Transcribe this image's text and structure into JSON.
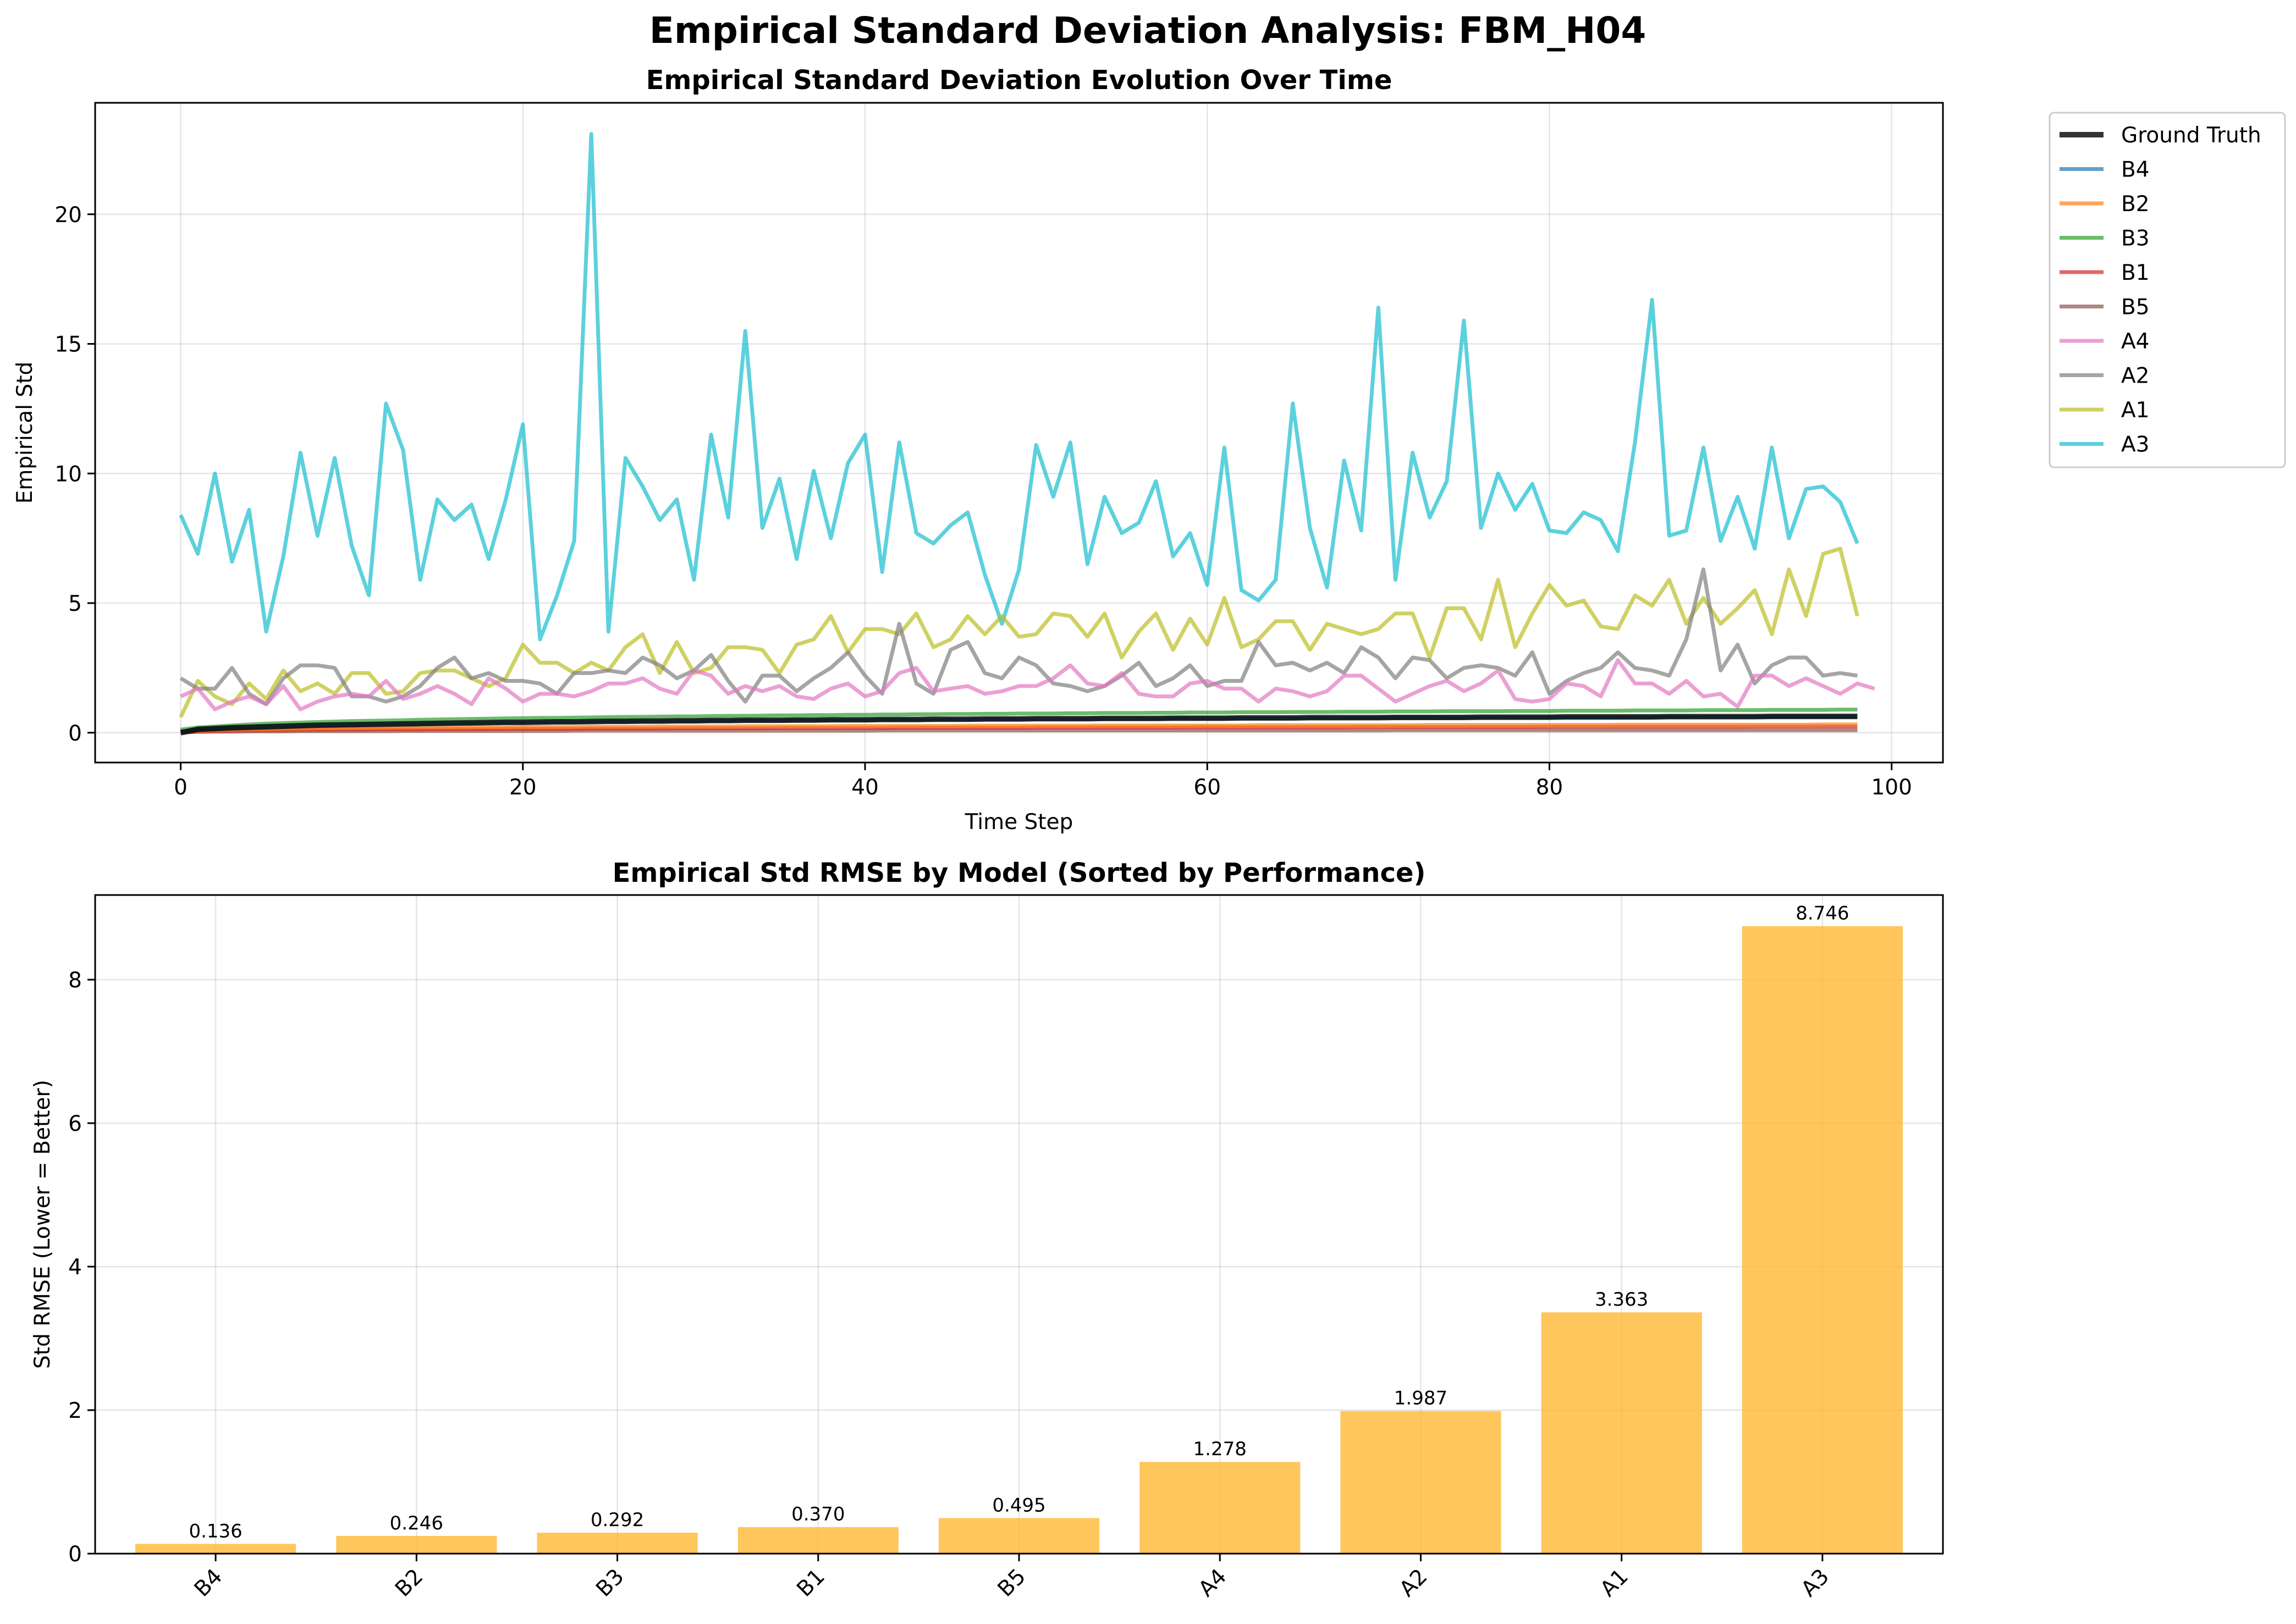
{
  "suptitle": "Empirical Standard Deviation Analysis: FBM_H04",
  "chart_data": [
    {
      "type": "line",
      "title": "Empirical Standard Deviation Evolution Over Time",
      "xlabel": "Time Step",
      "ylabel": "Empirical Std",
      "xlim": [
        -5,
        103
      ],
      "ylim": [
        -1.15,
        24.3
      ],
      "xticks": [
        0,
        20,
        40,
        60,
        80,
        100
      ],
      "yticks": [
        0,
        5,
        10,
        15,
        20
      ],
      "grid": true,
      "legend_position": "outside-top-right",
      "x_start": 0,
      "series": [
        {
          "name": "Ground Truth",
          "color": "#000000",
          "values": [
            0.0,
            0.13,
            0.16,
            0.19,
            0.21,
            0.23,
            0.25,
            0.27,
            0.29,
            0.3,
            0.31,
            0.32,
            0.33,
            0.34,
            0.35,
            0.36,
            0.37,
            0.38,
            0.39,
            0.4,
            0.4,
            0.41,
            0.42,
            0.42,
            0.43,
            0.44,
            0.44,
            0.45,
            0.45,
            0.46,
            0.46,
            0.47,
            0.47,
            0.48,
            0.48,
            0.48,
            0.49,
            0.49,
            0.5,
            0.5,
            0.5,
            0.51,
            0.51,
            0.51,
            0.52,
            0.52,
            0.52,
            0.53,
            0.53,
            0.53,
            0.54,
            0.54,
            0.54,
            0.54,
            0.55,
            0.55,
            0.55,
            0.55,
            0.56,
            0.56,
            0.56,
            0.56,
            0.57,
            0.57,
            0.57,
            0.57,
            0.58,
            0.58,
            0.58,
            0.58,
            0.58,
            0.59,
            0.59,
            0.59,
            0.59,
            0.59,
            0.6,
            0.6,
            0.6,
            0.6,
            0.6,
            0.61,
            0.61,
            0.61,
            0.61,
            0.61,
            0.61,
            0.62,
            0.62,
            0.62,
            0.62,
            0.62,
            0.62,
            0.63,
            0.63,
            0.63,
            0.63,
            0.63,
            0.63
          ]
        },
        {
          "name": "B4",
          "color": "#1f77b4",
          "values": [
            0.05,
            0.12,
            0.15,
            0.18,
            0.2,
            0.22,
            0.24,
            0.26,
            0.28,
            0.29,
            0.3,
            0.31,
            0.32,
            0.33,
            0.34,
            0.35,
            0.36,
            0.37,
            0.38,
            0.39,
            0.39,
            0.4,
            0.41,
            0.41,
            0.42,
            0.43,
            0.43,
            0.44,
            0.44,
            0.45,
            0.45,
            0.46,
            0.46,
            0.47,
            0.47,
            0.47,
            0.48,
            0.48,
            0.49,
            0.49,
            0.49,
            0.5,
            0.5,
            0.5,
            0.51,
            0.51,
            0.51,
            0.52,
            0.52,
            0.52,
            0.53,
            0.53,
            0.53,
            0.53,
            0.54,
            0.54,
            0.54,
            0.54,
            0.55,
            0.55,
            0.55,
            0.55,
            0.56,
            0.56,
            0.56,
            0.56,
            0.57,
            0.57,
            0.57,
            0.57,
            0.57,
            0.58,
            0.58,
            0.58,
            0.58,
            0.58,
            0.59,
            0.59,
            0.59,
            0.59,
            0.59,
            0.6,
            0.6,
            0.6,
            0.6,
            0.6,
            0.6,
            0.61,
            0.61,
            0.61,
            0.61,
            0.61,
            0.61,
            0.62,
            0.62,
            0.62,
            0.62,
            0.62,
            0.62
          ]
        },
        {
          "name": "B2",
          "color": "#ff7f0e",
          "values": [
            0.03,
            0.08,
            0.1,
            0.12,
            0.13,
            0.14,
            0.15,
            0.16,
            0.17,
            0.17,
            0.18,
            0.18,
            0.19,
            0.19,
            0.2,
            0.2,
            0.2,
            0.21,
            0.21,
            0.21,
            0.22,
            0.22,
            0.22,
            0.22,
            0.23,
            0.23,
            0.23,
            0.23,
            0.24,
            0.24,
            0.24,
            0.24,
            0.24,
            0.25,
            0.25,
            0.25,
            0.25,
            0.25,
            0.25,
            0.26,
            0.26,
            0.26,
            0.26,
            0.26,
            0.26,
            0.26,
            0.27,
            0.27,
            0.27,
            0.27,
            0.27,
            0.27,
            0.27,
            0.27,
            0.28,
            0.28,
            0.28,
            0.28,
            0.28,
            0.28,
            0.28,
            0.28,
            0.28,
            0.29,
            0.29,
            0.29,
            0.29,
            0.29,
            0.29,
            0.29,
            0.29,
            0.29,
            0.29,
            0.3,
            0.3,
            0.3,
            0.3,
            0.3,
            0.3,
            0.3,
            0.3,
            0.3,
            0.3,
            0.3,
            0.31,
            0.31,
            0.31,
            0.31,
            0.31,
            0.31,
            0.31,
            0.31,
            0.31,
            0.31,
            0.31,
            0.31,
            0.32,
            0.32,
            0.32
          ]
        },
        {
          "name": "B3",
          "color": "#2ca02c",
          "values": [
            0.12,
            0.2,
            0.24,
            0.28,
            0.32,
            0.35,
            0.37,
            0.39,
            0.41,
            0.43,
            0.45,
            0.46,
            0.47,
            0.48,
            0.5,
            0.51,
            0.52,
            0.53,
            0.54,
            0.55,
            0.56,
            0.57,
            0.57,
            0.58,
            0.59,
            0.6,
            0.61,
            0.61,
            0.62,
            0.63,
            0.63,
            0.64,
            0.65,
            0.65,
            0.66,
            0.67,
            0.67,
            0.68,
            0.68,
            0.69,
            0.69,
            0.7,
            0.7,
            0.71,
            0.71,
            0.72,
            0.72,
            0.73,
            0.73,
            0.74,
            0.74,
            0.74,
            0.75,
            0.75,
            0.76,
            0.76,
            0.76,
            0.77,
            0.77,
            0.78,
            0.78,
            0.78,
            0.79,
            0.79,
            0.79,
            0.8,
            0.8,
            0.8,
            0.81,
            0.81,
            0.81,
            0.82,
            0.82,
            0.82,
            0.83,
            0.83,
            0.83,
            0.83,
            0.84,
            0.84,
            0.84,
            0.85,
            0.85,
            0.85,
            0.85,
            0.86,
            0.86,
            0.86,
            0.86,
            0.87,
            0.87,
            0.87,
            0.87,
            0.88,
            0.88,
            0.88,
            0.88,
            0.89,
            0.89
          ]
        },
        {
          "name": "B1",
          "color": "#d62728",
          "values": [
            0.02,
            0.06,
            0.07,
            0.08,
            0.09,
            0.1,
            0.1,
            0.11,
            0.11,
            0.12,
            0.12,
            0.12,
            0.13,
            0.13,
            0.13,
            0.14,
            0.14,
            0.14,
            0.14,
            0.15,
            0.15,
            0.15,
            0.15,
            0.15,
            0.16,
            0.16,
            0.16,
            0.16,
            0.16,
            0.17,
            0.17,
            0.17,
            0.17,
            0.17,
            0.17,
            0.18,
            0.18,
            0.18,
            0.18,
            0.18,
            0.18,
            0.18,
            0.19,
            0.19,
            0.19,
            0.19,
            0.19,
            0.19,
            0.19,
            0.19,
            0.2,
            0.2,
            0.2,
            0.2,
            0.2,
            0.2,
            0.2,
            0.2,
            0.2,
            0.21,
            0.21,
            0.21,
            0.21,
            0.21,
            0.21,
            0.21,
            0.21,
            0.21,
            0.21,
            0.22,
            0.22,
            0.22,
            0.22,
            0.22,
            0.22,
            0.22,
            0.22,
            0.22,
            0.22,
            0.22,
            0.23,
            0.23,
            0.23,
            0.23,
            0.23,
            0.23,
            0.23,
            0.23,
            0.23,
            0.23,
            0.23,
            0.23,
            0.24,
            0.24,
            0.24,
            0.24,
            0.24,
            0.24,
            0.24
          ]
        },
        {
          "name": "B5",
          "color": "#8c564b",
          "values": [
            0.01,
            0.03,
            0.04,
            0.04,
            0.05,
            0.05,
            0.05,
            0.06,
            0.06,
            0.06,
            0.06,
            0.06,
            0.06,
            0.07,
            0.07,
            0.07,
            0.07,
            0.07,
            0.07,
            0.07,
            0.07,
            0.07,
            0.07,
            0.08,
            0.08,
            0.08,
            0.08,
            0.08,
            0.08,
            0.08,
            0.08,
            0.08,
            0.08,
            0.08,
            0.08,
            0.08,
            0.08,
            0.08,
            0.08,
            0.08,
            0.08,
            0.09,
            0.09,
            0.09,
            0.09,
            0.09,
            0.09,
            0.09,
            0.09,
            0.09,
            0.09,
            0.09,
            0.09,
            0.09,
            0.09,
            0.09,
            0.09,
            0.09,
            0.09,
            0.09,
            0.09,
            0.09,
            0.09,
            0.09,
            0.09,
            0.09,
            0.09,
            0.09,
            0.09,
            0.09,
            0.09,
            0.1,
            0.1,
            0.1,
            0.1,
            0.1,
            0.1,
            0.1,
            0.1,
            0.1,
            0.1,
            0.1,
            0.1,
            0.1,
            0.1,
            0.1,
            0.1,
            0.1,
            0.1,
            0.1,
            0.1,
            0.1,
            0.1,
            0.1,
            0.1,
            0.1,
            0.1,
            0.1,
            0.1
          ]
        },
        {
          "name": "A4",
          "color": "#e377c2",
          "values": [
            1.4,
            1.7,
            0.9,
            1.2,
            1.4,
            1.1,
            1.8,
            0.9,
            1.2,
            1.4,
            1.5,
            1.4,
            2.0,
            1.3,
            1.5,
            1.8,
            1.5,
            1.1,
            2.1,
            1.7,
            1.2,
            1.5,
            1.5,
            1.4,
            1.6,
            1.9,
            1.9,
            2.1,
            1.7,
            1.5,
            2.4,
            2.2,
            1.5,
            1.8,
            1.6,
            1.8,
            1.4,
            1.3,
            1.7,
            1.9,
            1.4,
            1.6,
            2.3,
            2.5,
            1.6,
            1.7,
            1.8,
            1.5,
            1.6,
            1.8,
            1.8,
            2.1,
            2.6,
            1.9,
            1.8,
            2.3,
            1.5,
            1.4,
            1.4,
            1.9,
            2.0,
            1.7,
            1.7,
            1.2,
            1.7,
            1.6,
            1.4,
            1.6,
            2.2,
            2.2,
            1.7,
            1.2,
            1.5,
            1.8,
            2.0,
            1.6,
            1.9,
            2.4,
            1.3,
            1.2,
            1.3,
            1.9,
            1.8,
            1.4,
            2.8,
            1.9,
            1.9,
            1.5,
            2.0,
            1.4,
            1.5,
            1.0,
            2.2,
            2.2,
            1.8,
            2.1,
            1.8,
            1.5,
            1.9,
            1.7
          ]
        },
        {
          "name": "A2",
          "color": "#7f7f7f",
          "values": [
            2.1,
            1.7,
            1.7,
            2.5,
            1.5,
            1.1,
            2.1,
            2.6,
            2.6,
            2.5,
            1.4,
            1.4,
            1.2,
            1.4,
            1.8,
            2.5,
            2.9,
            2.1,
            2.3,
            2.0,
            2.0,
            1.9,
            1.5,
            2.3,
            2.3,
            2.4,
            2.3,
            2.9,
            2.6,
            2.1,
            2.4,
            3.0,
            2.0,
            1.2,
            2.2,
            2.2,
            1.6,
            2.1,
            2.5,
            3.1,
            2.2,
            1.5,
            4.2,
            1.9,
            1.5,
            3.2,
            3.5,
            2.3,
            2.1,
            2.9,
            2.6,
            1.9,
            1.8,
            1.6,
            1.8,
            2.2,
            2.7,
            1.8,
            2.1,
            2.6,
            1.8,
            2.0,
            2.0,
            3.5,
            2.6,
            2.7,
            2.4,
            2.7,
            2.3,
            3.3,
            2.9,
            2.1,
            2.9,
            2.8,
            2.1,
            2.5,
            2.6,
            2.5,
            2.2,
            3.1,
            1.5,
            2.0,
            2.3,
            2.5,
            3.1,
            2.5,
            2.4,
            2.2,
            3.6,
            6.3,
            2.4,
            3.4,
            1.9,
            2.6,
            2.9,
            2.9,
            2.2,
            2.3,
            2.2
          ]
        },
        {
          "name": "A1",
          "color": "#bcbd22",
          "values": [
            0.6,
            2.0,
            1.4,
            1.1,
            1.9,
            1.3,
            2.4,
            1.6,
            1.9,
            1.5,
            2.3,
            2.3,
            1.5,
            1.6,
            2.3,
            2.4,
            2.4,
            2.1,
            1.8,
            2.1,
            3.4,
            2.7,
            2.7,
            2.3,
            2.7,
            2.4,
            3.3,
            3.8,
            2.3,
            3.5,
            2.3,
            2.5,
            3.3,
            3.3,
            3.2,
            2.3,
            3.4,
            3.6,
            4.5,
            3.1,
            4.0,
            4.0,
            3.8,
            4.6,
            3.3,
            3.6,
            4.5,
            3.8,
            4.5,
            3.7,
            3.8,
            4.6,
            4.5,
            3.7,
            4.6,
            2.9,
            3.9,
            4.6,
            3.2,
            4.4,
            3.4,
            5.2,
            3.3,
            3.6,
            4.3,
            4.3,
            3.2,
            4.2,
            4.0,
            3.8,
            4.0,
            4.6,
            4.6,
            2.9,
            4.8,
            4.8,
            3.6,
            5.9,
            3.3,
            4.6,
            5.7,
            4.9,
            5.1,
            4.1,
            4.0,
            5.3,
            4.9,
            5.9,
            4.2,
            5.2,
            4.2,
            4.8,
            5.5,
            3.8,
            6.3,
            4.5,
            6.9,
            7.1,
            4.5
          ]
        },
        {
          "name": "A3",
          "color": "#17becf",
          "values": [
            8.4,
            6.9,
            10.0,
            6.6,
            8.6,
            3.9,
            6.8,
            10.8,
            7.6,
            10.6,
            7.2,
            5.3,
            12.7,
            10.9,
            5.9,
            9.0,
            8.2,
            8.8,
            6.7,
            9.0,
            11.9,
            3.6,
            5.3,
            7.4,
            23.1,
            3.9,
            10.6,
            9.5,
            8.2,
            9.0,
            5.9,
            11.5,
            8.3,
            15.5,
            7.9,
            9.8,
            6.7,
            10.1,
            7.5,
            10.4,
            11.5,
            6.2,
            11.2,
            7.7,
            7.3,
            8.0,
            8.5,
            6.1,
            4.2,
            6.3,
            11.1,
            9.1,
            11.2,
            6.5,
            9.1,
            7.7,
            8.1,
            9.7,
            6.8,
            7.7,
            5.7,
            11.0,
            5.5,
            5.1,
            5.9,
            12.7,
            7.9,
            5.6,
            10.5,
            7.8,
            16.4,
            5.9,
            10.8,
            8.3,
            9.7,
            15.9,
            7.9,
            10.0,
            8.6,
            9.6,
            7.8,
            7.7,
            8.5,
            8.2,
            7.0,
            11.2,
            16.7,
            7.6,
            7.8,
            11.0,
            7.4,
            9.1,
            7.1,
            11.0,
            7.5,
            9.4,
            9.5,
            8.9,
            7.3
          ]
        }
      ]
    },
    {
      "type": "bar",
      "title": "Empirical Std RMSE by Model (Sorted by Performance)",
      "xlabel": "",
      "ylabel": "Std RMSE (Lower = Better)",
      "categories": [
        "B4",
        "B2",
        "B3",
        "B1",
        "B5",
        "A4",
        "A2",
        "A1",
        "A3"
      ],
      "values": [
        0.136,
        0.246,
        0.292,
        0.37,
        0.495,
        1.278,
        1.987,
        3.363,
        8.746
      ],
      "value_labels": [
        "0.136",
        "0.246",
        "0.292",
        "0.370",
        "0.495",
        "1.278",
        "1.987",
        "3.363",
        "8.746"
      ],
      "bar_color": "#ffb833",
      "ylim": [
        0,
        9.18
      ],
      "yticks": [
        0,
        2,
        4,
        6,
        8
      ],
      "grid": true
    }
  ]
}
